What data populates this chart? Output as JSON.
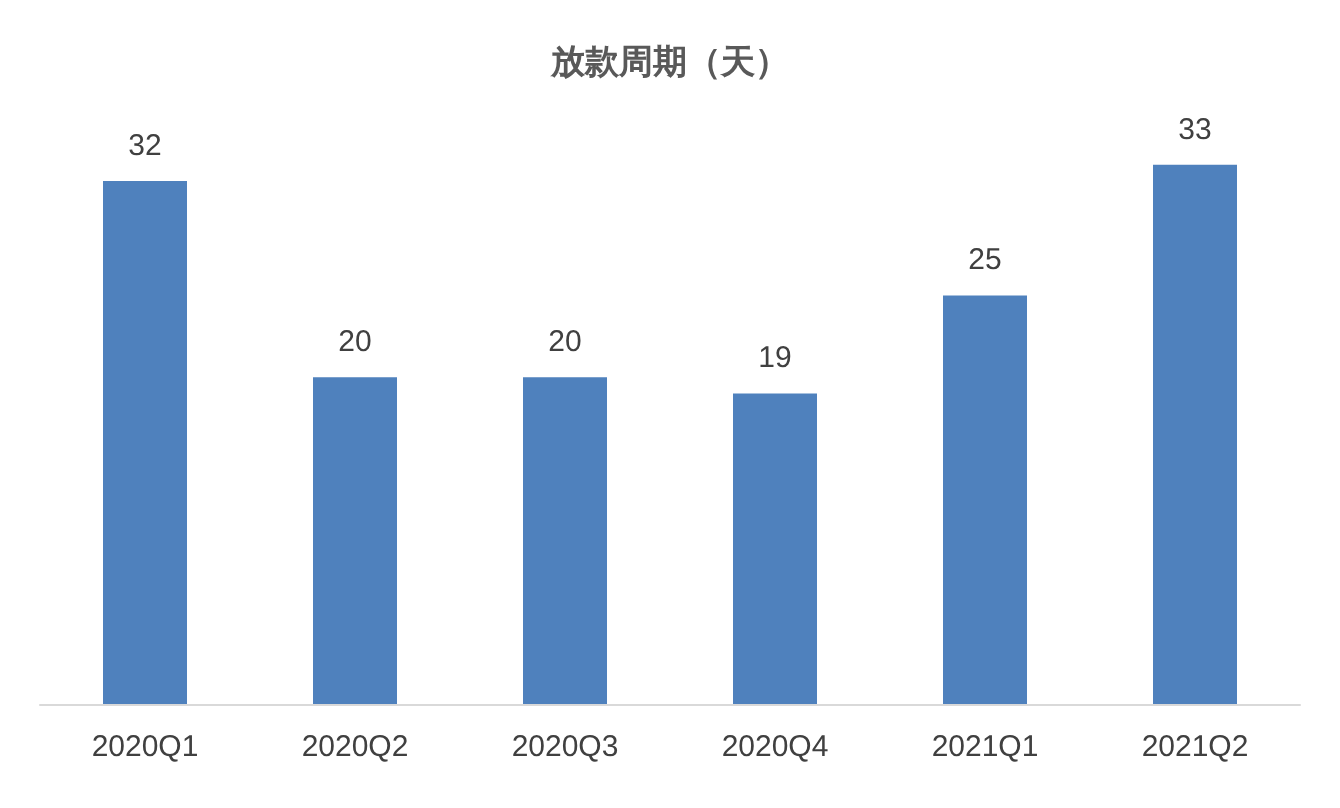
{
  "chart_data": {
    "type": "bar",
    "title": "放款周期（天）",
    "categories": [
      "2020Q1",
      "2020Q2",
      "2020Q3",
      "2020Q4",
      "2021Q1",
      "2021Q2"
    ],
    "values": [
      32,
      20,
      20,
      19,
      25,
      33
    ],
    "color": "#4f81bd",
    "data_labels": true
  }
}
